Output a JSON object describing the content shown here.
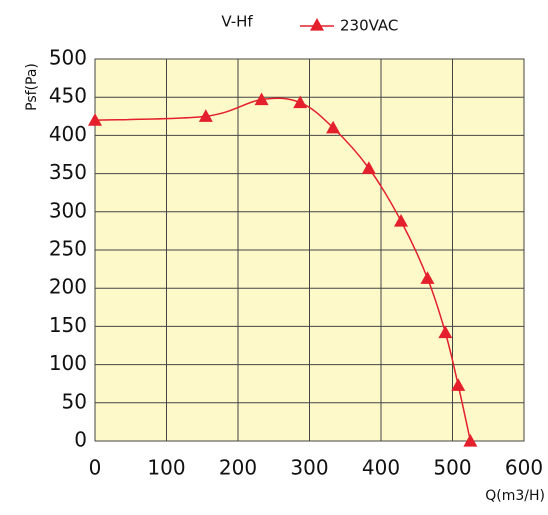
{
  "chart_data": {
    "type": "line",
    "title": "V-Hf",
    "xlabel": "Q(m3/H)",
    "ylabel": "Psf(Pa)",
    "x": [
      0,
      155,
      233,
      287,
      333,
      383,
      428,
      465,
      490,
      508,
      525
    ],
    "series": [
      {
        "name": "230VAC",
        "color": "#e3202b",
        "values": [
          420,
          425,
          447,
          443,
          410,
          357,
          288,
          213,
          142,
          73,
          0
        ]
      }
    ],
    "xlim": [
      0,
      600
    ],
    "ylim": [
      0,
      500
    ],
    "xticks": [
      0,
      100,
      200,
      300,
      400,
      500,
      600
    ],
    "yticks": [
      0,
      50,
      100,
      150,
      200,
      250,
      300,
      350,
      400,
      450,
      500
    ],
    "grid": true,
    "background": "#fdf9c9"
  }
}
